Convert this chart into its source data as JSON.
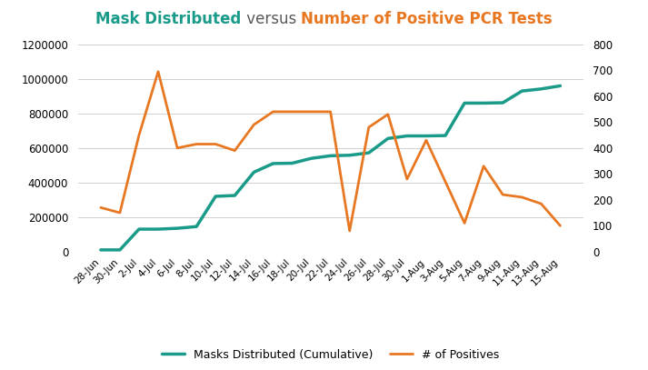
{
  "title_part1": "Mask Distributed",
  "title_part2": " versus ",
  "title_part3": "Number of Positive PCR Tests",
  "title_color1": "#1a9b8a",
  "title_color2": "#595959",
  "title_color3": "#e87722",
  "labels": [
    "28-Jun",
    "30-Jun",
    "2-Jul",
    "4-Jul",
    "6-Jul",
    "8-Jul",
    "10-Jul",
    "12-Jul",
    "14-Jul",
    "16-Jul",
    "18-Jul",
    "20-Jul",
    "22-Jul",
    "24-Jul",
    "26-Jul",
    "28-Jul",
    "30-Jul",
    "1-Aug",
    "3-Aug",
    "5-Aug",
    "7-Aug",
    "9-Aug",
    "11-Aug",
    "13-Aug",
    "15-Aug"
  ],
  "masks": [
    10000,
    10000,
    130000,
    130000,
    135000,
    145000,
    320000,
    325000,
    460000,
    510000,
    512000,
    540000,
    555000,
    558000,
    572000,
    655000,
    670000,
    670000,
    672000,
    860000,
    860000,
    862000,
    930000,
    942000,
    960000
  ],
  "positives": [
    170,
    150,
    450,
    695,
    400,
    415,
    415,
    390,
    490,
    540,
    540,
    540,
    540,
    80,
    480,
    530,
    280,
    430,
    270,
    110,
    330,
    220,
    210,
    185,
    100
  ],
  "masks_color": "#1a9b8a",
  "positives_color": "#e87722",
  "bg_color": "#ffffff",
  "grid_color": "#d0d0d0",
  "ylim_left": [
    0,
    1200000
  ],
  "ylim_right": [
    0,
    800
  ],
  "legend_masks": "Masks Distributed (Cumulative)",
  "legend_positives": "# of Positives",
  "title_fontsize": 12
}
